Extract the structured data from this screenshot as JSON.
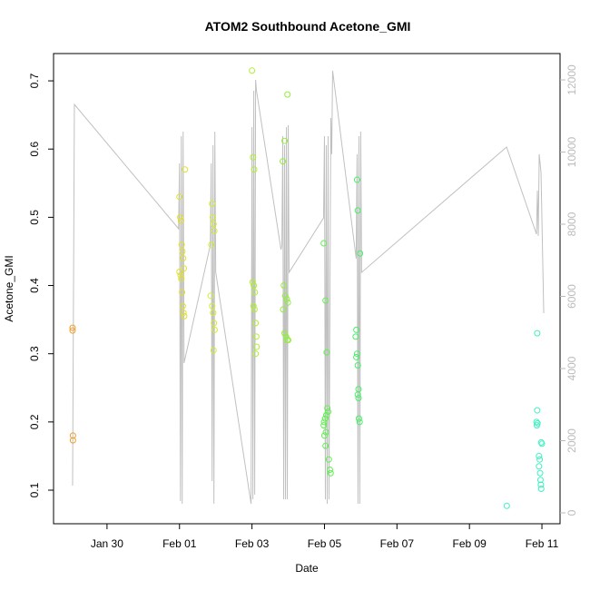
{
  "chart_data": {
    "type": "scatter",
    "title": "ATOM2 Southbound Acetone_GMI",
    "x_label": "Date",
    "y_label": "Acetone_GMI",
    "xlim": [
      28.525,
      42.5
    ],
    "ylim": [
      0.0508,
      0.74
    ],
    "y2lim": [
      -302,
      12730
    ],
    "xticks": [
      {
        "value": 30,
        "label": "Jan 30"
      },
      {
        "value": 32,
        "label": "Feb 01"
      },
      {
        "value": 34,
        "label": "Feb 03"
      },
      {
        "value": 36,
        "label": "Feb 05"
      },
      {
        "value": 38,
        "label": "Feb 07"
      },
      {
        "value": 40,
        "label": "Feb 09"
      },
      {
        "value": 42,
        "label": "Feb 11"
      }
    ],
    "yticks": [
      0.1,
      0.2,
      0.3,
      0.4,
      0.5,
      0.6,
      0.7
    ],
    "y2ticks": [
      0,
      2000,
      4000,
      6000,
      8000,
      10000,
      12000
    ],
    "series": [
      {
        "type": "line",
        "axis": "y2",
        "color": "#c0c0c0",
        "x": [
          29.05,
          29.1,
          31.975,
          32.0,
          32.025,
          32.05,
          32.075,
          32.1,
          32.125,
          32.85,
          32.875,
          32.9,
          32.925,
          32.95,
          32.975,
          33.0,
          33.975,
          34.0,
          34.025,
          34.05,
          34.075,
          34.1,
          34.125,
          34.8,
          34.825,
          34.85,
          34.875,
          34.9,
          34.925,
          34.95,
          34.975,
          35.0,
          35.025,
          35.975,
          36.0,
          36.025,
          36.05,
          36.075,
          36.1,
          36.125,
          36.175,
          36.2,
          36.225,
          36.875,
          36.9,
          36.925,
          36.95,
          36.975,
          37.0,
          37.025,
          41.025,
          41.85,
          41.875,
          41.9,
          41.925,
          41.975,
          42.05
        ],
        "values": [
          755,
          11320,
          7875,
          9685,
          327,
          10440,
          250,
          10565,
          4150,
          7420,
          9685,
          880,
          10190,
          250,
          10565,
          6665,
          250,
          10690,
          375,
          11700,
          505,
          12000,
          11700,
          7295,
          7420,
          10440,
          375,
          10190,
          375,
          10690,
          375,
          10745,
          6665,
          8175,
          10440,
          375,
          10190,
          250,
          10440,
          375,
          10945,
          9940,
          12255,
          7045,
          9940,
          250,
          10440,
          250,
          10565,
          6665,
          10140,
          7725,
          8930,
          7675,
          9940,
          9435,
          5535
        ]
      },
      {
        "color": "#f0a030",
        "x": [
          29.05,
          29.05,
          29.06,
          29.06
        ],
        "values": [
          0.338,
          0.334,
          0.18,
          0.173
        ]
      },
      {
        "color": "#e0e030",
        "x": [
          32.0,
          32.02,
          32.04,
          32.06,
          32.08,
          32.1,
          32.12,
          32.0,
          32.03,
          32.05,
          32.07,
          32.09,
          32.11,
          32.13,
          32.15
        ],
        "values": [
          0.53,
          0.5,
          0.495,
          0.46,
          0.45,
          0.44,
          0.425,
          0.42,
          0.415,
          0.41,
          0.39,
          0.37,
          0.36,
          0.355,
          0.57
        ]
      },
      {
        "color": "#d4ec30",
        "x": [
          32.9,
          32.92,
          32.94,
          32.96,
          32.88,
          32.86,
          32.9,
          32.93,
          32.95,
          32.97,
          32.94
        ],
        "values": [
          0.52,
          0.5,
          0.49,
          0.48,
          0.46,
          0.385,
          0.37,
          0.36,
          0.345,
          0.335,
          0.305
        ]
      },
      {
        "color": "#b0f030",
        "x": [
          34.0,
          34.03,
          34.06,
          34.02,
          34.05,
          34.08,
          34.04,
          34.07,
          34.1,
          34.12,
          34.13,
          34.1
        ],
        "values": [
          0.715,
          0.588,
          0.57,
          0.405,
          0.4,
          0.39,
          0.37,
          0.365,
          0.345,
          0.325,
          0.31,
          0.3
        ]
      },
      {
        "color": "#90f038",
        "x": [
          34.98,
          34.9,
          34.85,
          34.88,
          34.92,
          34.96,
          34.99,
          34.86,
          34.9,
          34.94,
          34.97,
          35.0
        ],
        "values": [
          0.68,
          0.612,
          0.582,
          0.4,
          0.385,
          0.38,
          0.375,
          0.365,
          0.33,
          0.325,
          0.32,
          0.32
        ]
      },
      {
        "color": "#60f050",
        "x": [
          35.98,
          36.03,
          36.06,
          36.08,
          36.1,
          36.05,
          36.02,
          35.99,
          35.98,
          36.04,
          36.0,
          36.03,
          36.12,
          36.15,
          36.17
        ],
        "values": [
          0.462,
          0.378,
          0.302,
          0.22,
          0.215,
          0.21,
          0.205,
          0.2,
          0.195,
          0.185,
          0.18,
          0.165,
          0.145,
          0.13,
          0.125
        ]
      },
      {
        "color": "#48f068",
        "x": [
          36.9,
          36.92,
          36.98,
          36.88,
          36.86,
          36.9,
          36.88,
          36.92,
          36.94,
          36.92,
          36.94,
          36.95,
          36.97
        ],
        "values": [
          0.555,
          0.51,
          0.447,
          0.335,
          0.325,
          0.3,
          0.295,
          0.283,
          0.248,
          0.24,
          0.235,
          0.205,
          0.2
        ]
      },
      {
        "color": "#40f0c0",
        "x": [
          41.03,
          41.87,
          41.87,
          41.85,
          41.88,
          41.86,
          41.98,
          42.0,
          41.92,
          41.94,
          41.92,
          41.95,
          41.96,
          41.97,
          41.98
        ],
        "values": [
          0.077,
          0.33,
          0.217,
          0.2,
          0.198,
          0.195,
          0.17,
          0.168,
          0.15,
          0.145,
          0.135,
          0.125,
          0.115,
          0.108,
          0.102
        ]
      }
    ]
  }
}
